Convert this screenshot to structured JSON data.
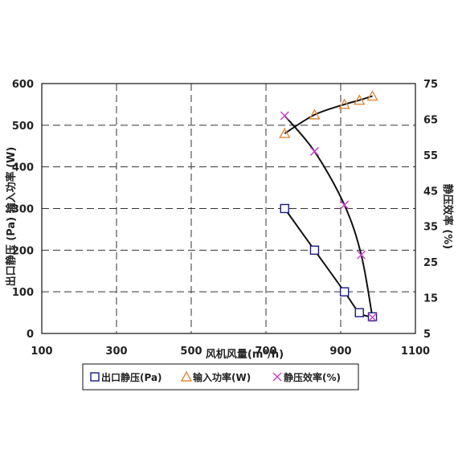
{
  "chart_data": {
    "type": "scatter",
    "x_axis": {
      "label": "风机风量(m³/h)",
      "range": [
        100,
        1100
      ],
      "ticks": [
        100,
        300,
        500,
        700,
        900,
        1100
      ]
    },
    "y_axis_left": {
      "label": "出口静压 (Pa) 输入功率 (W)",
      "range": [
        0,
        600
      ],
      "ticks": [
        0,
        100,
        200,
        300,
        400,
        500,
        600
      ]
    },
    "y_axis_right": {
      "label": "静压效率 (%)",
      "range": [
        5,
        75
      ],
      "ticks": [
        5,
        15,
        25,
        35,
        45,
        55,
        65,
        75
      ]
    },
    "grid": true,
    "legend_position": "bottom",
    "series": [
      {
        "name": "出口静压(Pa)",
        "axis": "left",
        "marker": "square",
        "color": "#1a1a80",
        "x": [
          750,
          830,
          910,
          950,
          985
        ],
        "y": [
          300,
          200,
          100,
          50,
          40
        ]
      },
      {
        "name": "输入功率(W)",
        "axis": "left",
        "marker": "triangle",
        "color": "#e08a3c",
        "x": [
          750,
          830,
          910,
          950,
          985
        ],
        "y": [
          480,
          525,
          550,
          560,
          570
        ]
      },
      {
        "name": "静压效率(%)",
        "axis": "right",
        "marker": "x",
        "color": "#cc44cc",
        "x": [
          750,
          830,
          910,
          955,
          985
        ],
        "y": [
          66,
          56,
          41,
          27,
          9.5
        ]
      }
    ]
  }
}
